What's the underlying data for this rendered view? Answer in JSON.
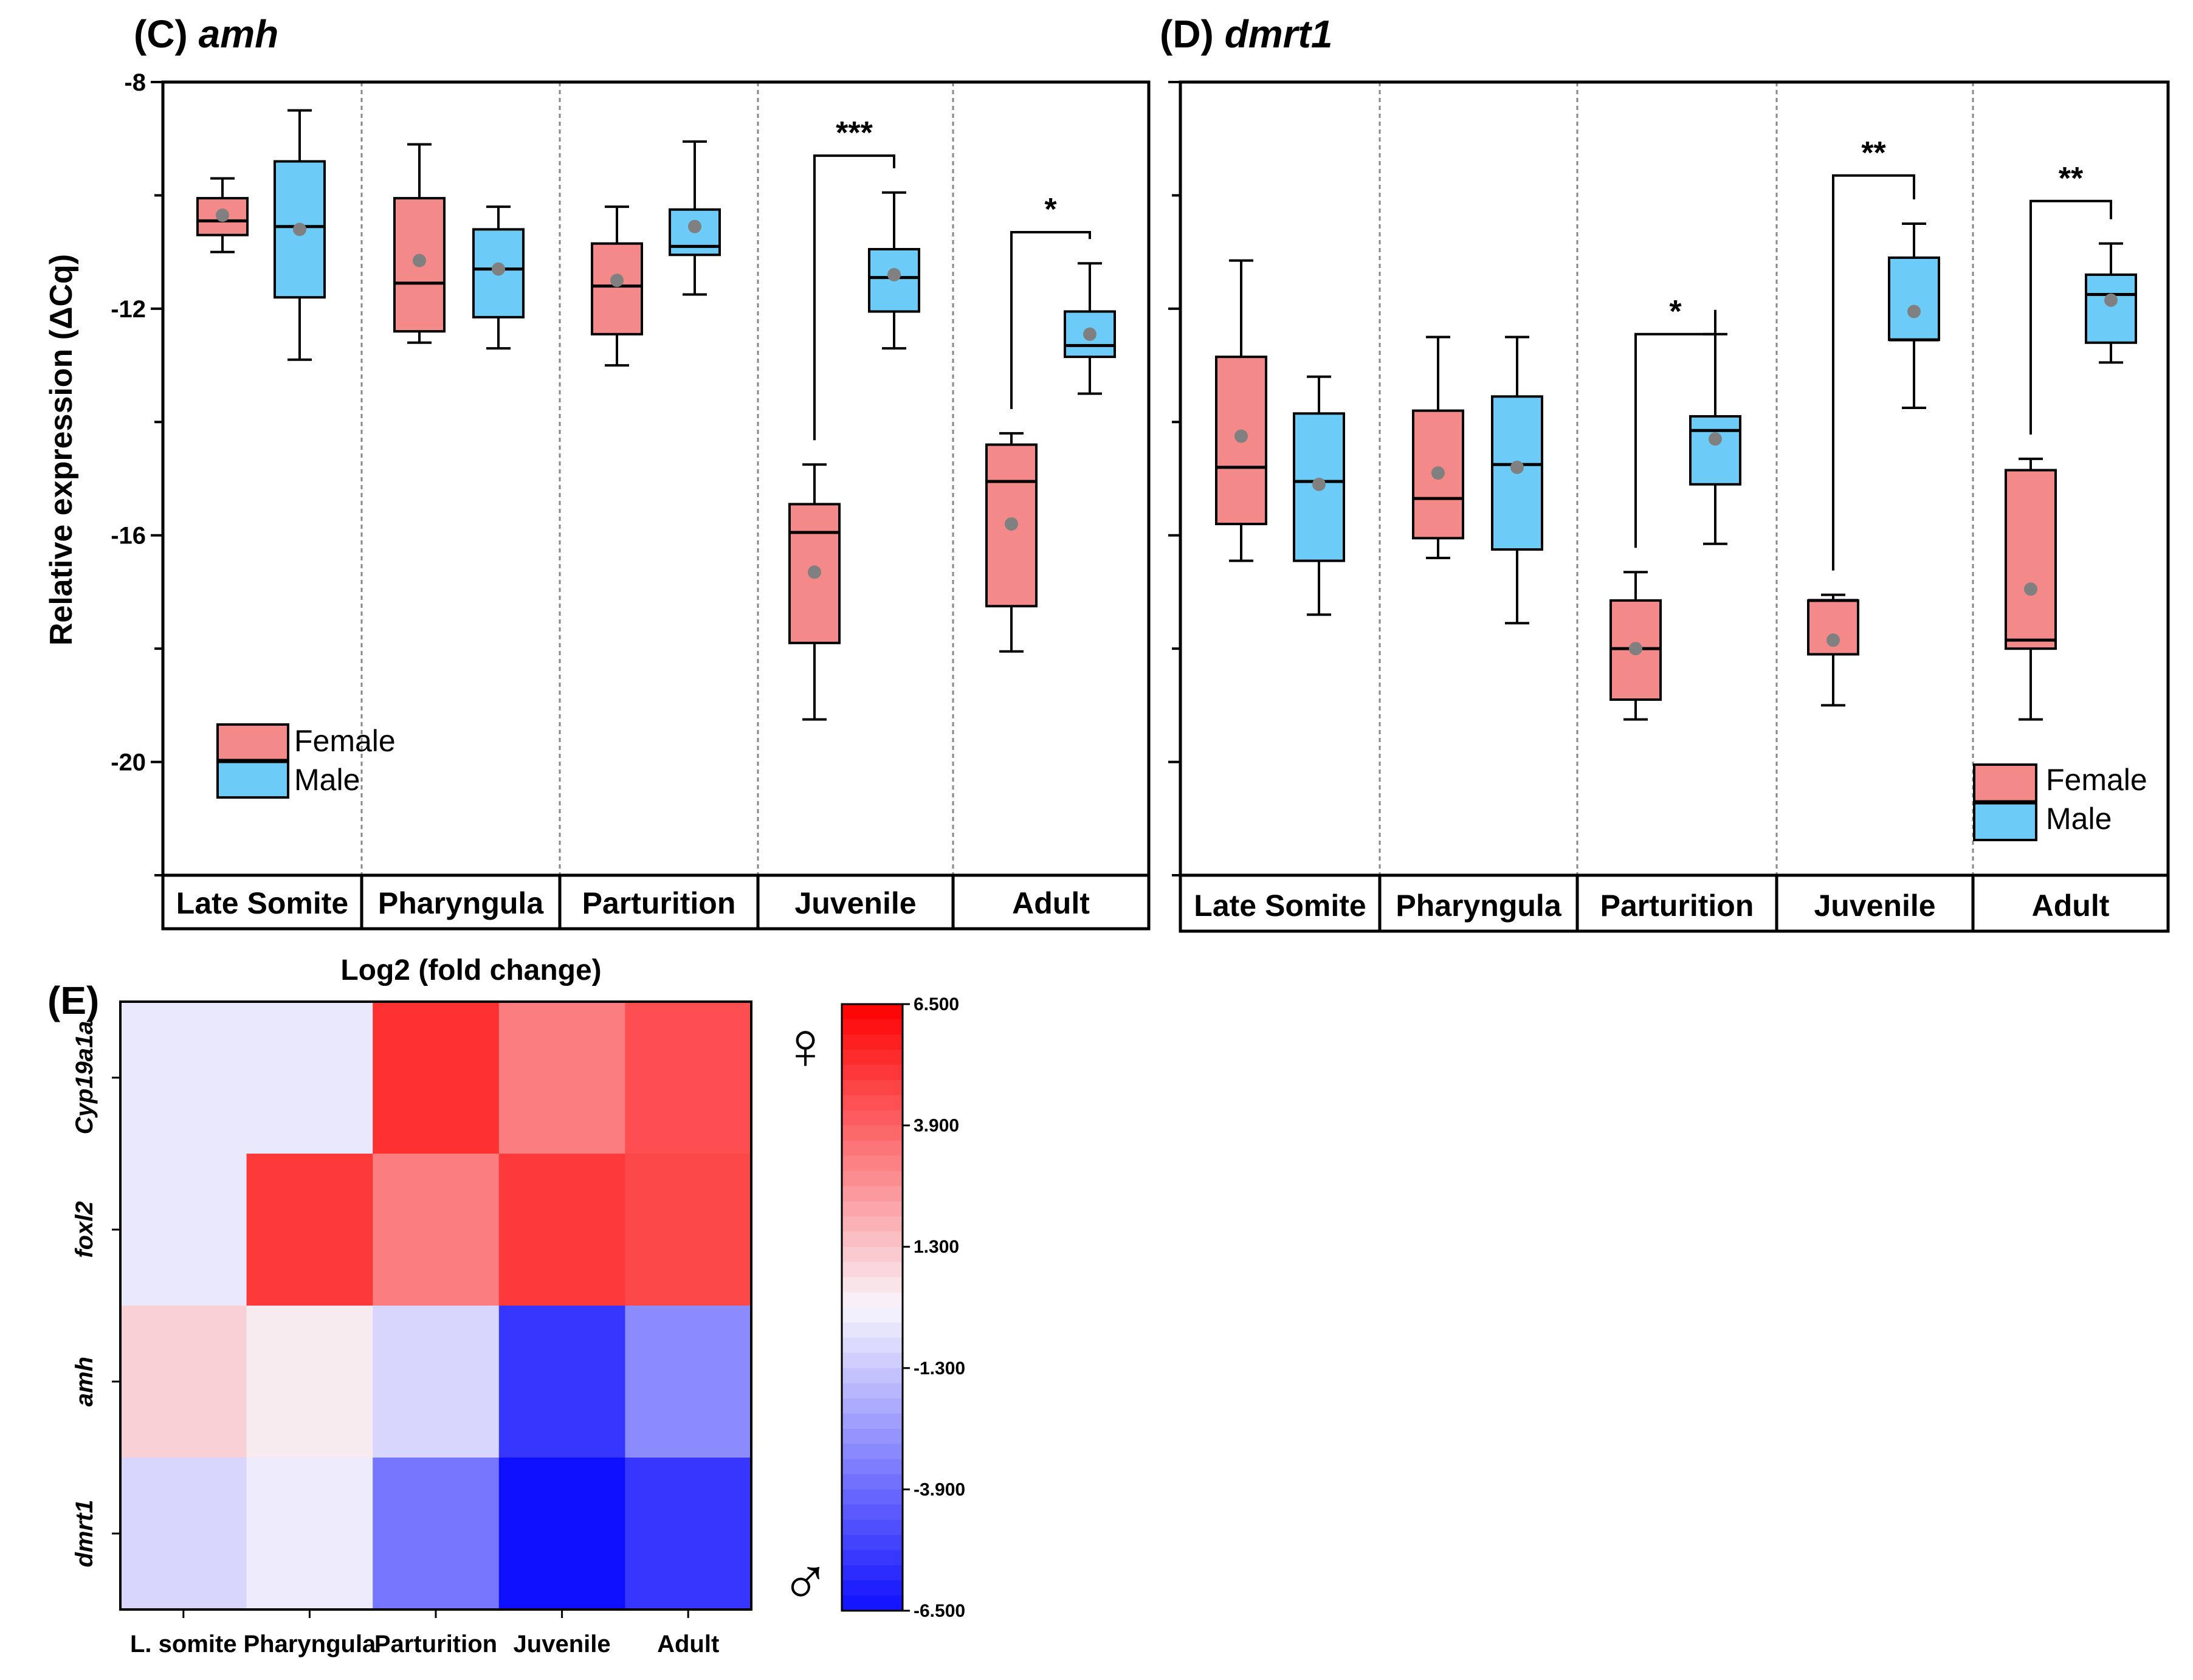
{
  "chart_data": [
    {
      "type": "box",
      "panel": "(C)",
      "gene": "amh",
      "ylabel": "Relative expression (ΔCq)",
      "ylim": [
        -22,
        -8
      ],
      "yticks": [
        -8,
        -12,
        -16,
        -20
      ],
      "categories": [
        "Late Somite",
        "Pharyngula",
        "Parturition",
        "Juvenile",
        "Adult"
      ],
      "legend": {
        "position": "bottom-left",
        "entries": [
          "Female",
          "Male"
        ]
      },
      "series": [
        {
          "name": "Female",
          "color": "#f4898a",
          "boxes": [
            {
              "whislo": -11.0,
              "q1": -10.7,
              "med": -10.45,
              "q3": -10.05,
              "whishi": -9.7,
              "mean": -10.35
            },
            {
              "whislo": -12.6,
              "q1": -12.4,
              "med": -11.55,
              "q3": -10.05,
              "whishi": -9.1,
              "mean": -11.15
            },
            {
              "whislo": -13.0,
              "q1": -12.45,
              "med": -11.6,
              "q3": -10.85,
              "whishi": -10.2,
              "mean": -11.5
            },
            {
              "whislo": -19.25,
              "q1": -17.9,
              "med": -15.95,
              "q3": -15.45,
              "whishi": -14.75,
              "mean": -16.65
            },
            {
              "whislo": -18.05,
              "q1": -17.25,
              "med": -15.05,
              "q3": -14.4,
              "whishi": -14.2,
              "mean": -15.8
            }
          ]
        },
        {
          "name": "Male",
          "color": "#6ccbf7",
          "boxes": [
            {
              "whislo": -12.9,
              "q1": -11.8,
              "med": -10.55,
              "q3": -9.4,
              "whishi": -8.5,
              "mean": -10.6
            },
            {
              "whislo": -12.7,
              "q1": -12.15,
              "med": -11.3,
              "q3": -10.6,
              "whishi": -10.2,
              "mean": -11.3
            },
            {
              "whislo": -11.75,
              "q1": -11.05,
              "med": -10.9,
              "q3": -10.25,
              "whishi": -9.05,
              "mean": -10.55
            },
            {
              "whislo": -12.7,
              "q1": -12.05,
              "med": -11.45,
              "q3": -10.95,
              "whishi": -9.95,
              "mean": -11.4
            },
            {
              "whislo": -13.5,
              "q1": -12.85,
              "med": -12.65,
              "q3": -12.05,
              "whishi": -11.2,
              "mean": -12.45
            }
          ]
        }
      ],
      "significance": [
        {
          "category": "Juvenile",
          "label": "***"
        },
        {
          "category": "Adult",
          "label": "*"
        }
      ]
    },
    {
      "type": "box",
      "panel": "(D)",
      "gene": "dmrt1",
      "ylim": [
        -22,
        -8
      ],
      "categories": [
        "Late Somite",
        "Pharyngula",
        "Parturition",
        "Juvenile",
        "Adult"
      ],
      "legend": {
        "position": "bottom-right",
        "entries": [
          "Female",
          "Male"
        ]
      },
      "series": [
        {
          "name": "Female",
          "color": "#f4898a",
          "boxes": [
            {
              "whislo": -16.45,
              "q1": -15.8,
              "med": -14.8,
              "q3": -12.85,
              "whishi": -11.15,
              "mean": -14.25
            },
            {
              "whislo": -16.4,
              "q1": -16.05,
              "med": -15.35,
              "q3": -13.8,
              "whishi": -12.5,
              "mean": -14.9
            },
            {
              "whislo": -19.25,
              "q1": -18.9,
              "med": -18.0,
              "q3": -17.15,
              "whishi": -16.65,
              "mean": -18.0
            },
            {
              "whislo": -19.0,
              "q1": -18.1,
              "med": -17.15,
              "q3": -17.15,
              "whishi": -17.05,
              "mean": -17.85
            },
            {
              "whislo": -19.25,
              "q1": -18.0,
              "med": -17.85,
              "q3": -14.85,
              "whishi": -14.65,
              "mean": -16.95
            }
          ]
        },
        {
          "name": "Male",
          "color": "#6ccbf7",
          "boxes": [
            {
              "whislo": -17.4,
              "q1": -16.45,
              "med": -15.05,
              "q3": -13.85,
              "whishi": -13.2,
              "mean": -15.1
            },
            {
              "whislo": -17.55,
              "q1": -16.25,
              "med": -14.75,
              "q3": -13.55,
              "whishi": -12.5,
              "mean": -14.8
            },
            {
              "whislo": -16.15,
              "q1": -15.1,
              "med": -14.15,
              "q3": -13.9,
              "whishi": -12.45,
              "mean": -14.3
            },
            {
              "whislo": -13.75,
              "q1": -12.55,
              "med": -12.55,
              "q3": -11.1,
              "whishi": -10.5,
              "mean": -12.05
            },
            {
              "whislo": -12.95,
              "q1": -12.6,
              "med": -11.75,
              "q3": -11.4,
              "whishi": -10.85,
              "mean": -11.85
            }
          ]
        }
      ],
      "significance": [
        {
          "category": "Parturition",
          "label": "*"
        },
        {
          "category": "Juvenile",
          "label": "**"
        },
        {
          "category": "Adult",
          "label": "**"
        }
      ]
    },
    {
      "type": "heatmap",
      "panel": "(E)",
      "title": "Log2 (fold change)",
      "columns": [
        "L. somite",
        "Pharyngula",
        "Parturition",
        "Juvenile",
        "Adult"
      ],
      "rows": [
        "Cyp19a1a",
        "foxl2",
        "amh",
        "dmrt1"
      ],
      "values": [
        [
          -0.4,
          -0.4,
          5.2,
          3.2,
          4.4
        ],
        [
          -0.4,
          5.0,
          3.2,
          5.0,
          4.6
        ],
        [
          1.0,
          0.3,
          -0.9,
          -5.4,
          -3.0
        ],
        [
          -0.9,
          -0.3,
          -3.6,
          -6.5,
          -5.4
        ]
      ],
      "colorbar": {
        "min": -6.5,
        "max": 6.5,
        "tick_labels": [
          "6.500",
          "3.900",
          "1.300",
          "-1.300",
          "-3.900",
          "-6.500"
        ],
        "top_symbol": "♀",
        "bottom_symbol": "♂"
      }
    }
  ]
}
